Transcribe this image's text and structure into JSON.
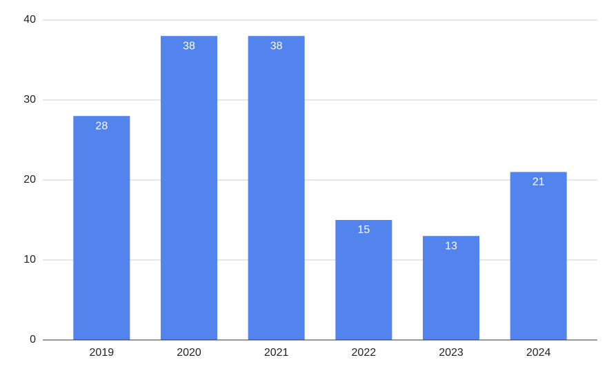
{
  "chart_data": {
    "type": "bar",
    "categories": [
      "2019",
      "2020",
      "2021",
      "2022",
      "2023",
      "2024"
    ],
    "values": [
      28,
      38,
      38,
      15,
      13,
      21
    ],
    "color": "#5383ec",
    "ylim": [
      0,
      40
    ],
    "yticks": [
      0,
      10,
      20,
      30,
      40
    ],
    "grid": true,
    "data_labels": true
  }
}
